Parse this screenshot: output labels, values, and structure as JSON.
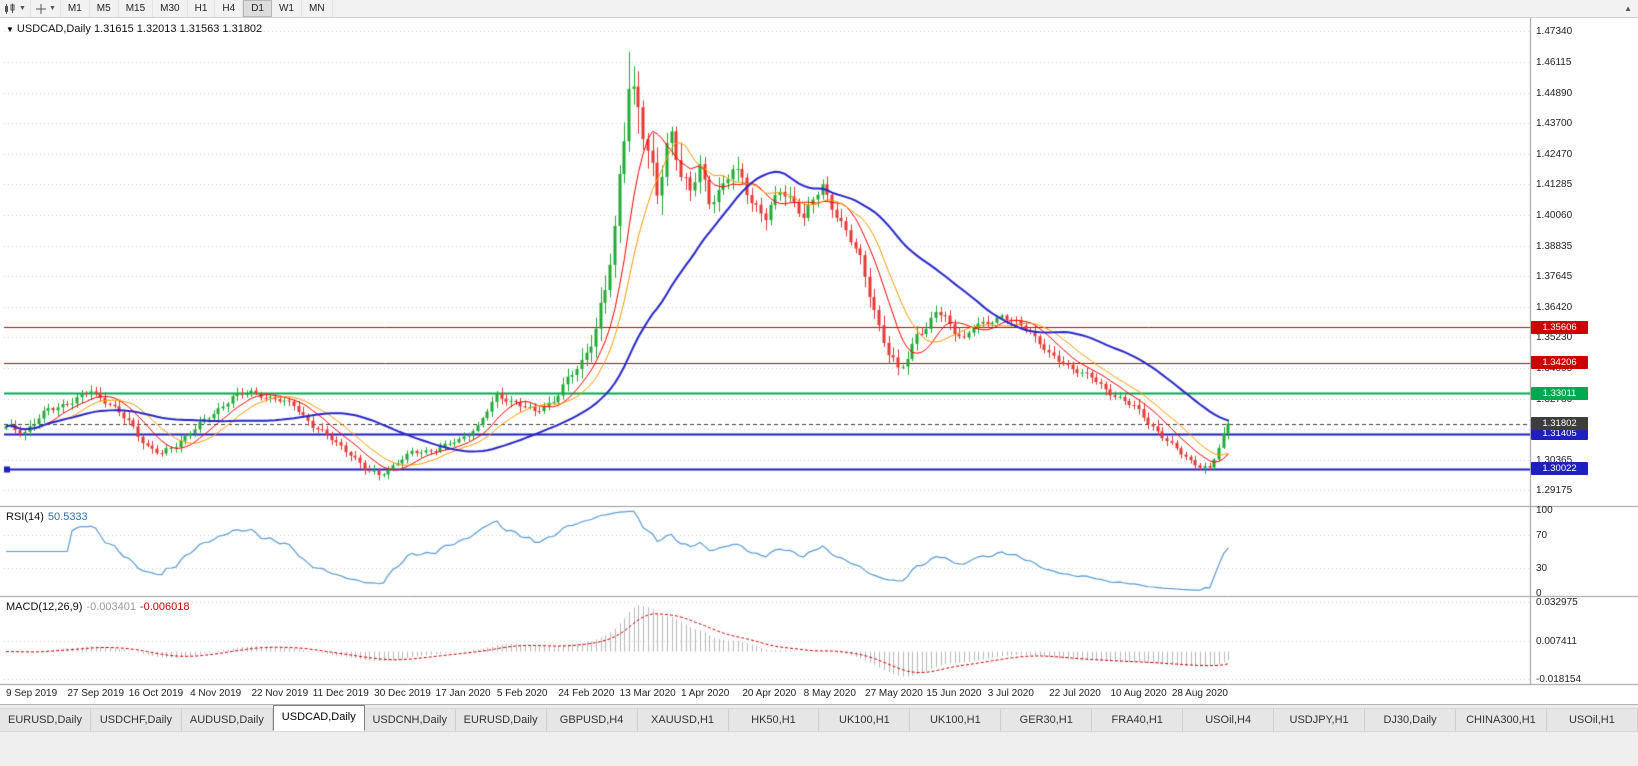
{
  "toolbar": {
    "timeframes": [
      "M1",
      "M5",
      "M15",
      "M30",
      "H1",
      "H4",
      "D1",
      "W1",
      "MN"
    ],
    "active_timeframe": "D1",
    "collapse_glyph": "▲"
  },
  "chart": {
    "symbol_period": "USDCAD,Daily",
    "ohlc": "1.31615 1.32013 1.31563 1.31802",
    "price_ticks": [
      "1.47340",
      "1.46115",
      "1.44890",
      "1.43700",
      "1.42470",
      "1.41285",
      "1.40060",
      "1.38835",
      "1.37645",
      "1.36420",
      "1.35230",
      "1.34005",
      "1.32780",
      "1.31590",
      "1.30365",
      "1.29175"
    ],
    "levels": [
      {
        "label": "1.35606",
        "price": 1.35606,
        "color": "#cc0000",
        "width": 1
      },
      {
        "label": "1.34206",
        "price": 1.34206,
        "color": "#cc0000",
        "width": 1
      },
      {
        "label": "1.33011",
        "price": 1.33011,
        "color": "#00a84f",
        "width": 2
      },
      {
        "label": "1.31405",
        "price": 1.31405,
        "color": "#1f1fbf",
        "width": 2
      },
      {
        "label": "1.30022",
        "price": 1.30022,
        "color": "#1f1fbf",
        "width": 2,
        "handle": true
      }
    ],
    "current_price": {
      "label": "1.31802",
      "price": 1.31802,
      "color": "#3d3d3d"
    }
  },
  "rsi": {
    "name": "RSI(14)",
    "value": "50.5333",
    "ticks": [
      {
        "label": "100",
        "value": 100
      },
      {
        "label": "70",
        "value": 70
      },
      {
        "label": "30",
        "value": 30
      },
      {
        "label": "0",
        "value": 0
      }
    ],
    "grid_levels": [
      70,
      30
    ],
    "line_color": "#5b9bd5"
  },
  "macd": {
    "name": "MACD(12,26,9)",
    "value_main": "-0.003401",
    "value_signal": "-0.006018",
    "ticks": [
      {
        "label": "0.032975",
        "value": 0.032975
      },
      {
        "label": "0.007411",
        "value": 0.007411
      },
      {
        "label": "-0.018154",
        "value": -0.018154
      }
    ],
    "hist_color": "#b8b8b8",
    "signal_color": "#cc0000"
  },
  "tabs": {
    "items": [
      "EURUSD,Daily",
      "USDCHF,Daily",
      "AUDUSD,Daily",
      "USDCAD,Daily",
      "USDCNH,Daily",
      "EURUSD,Daily",
      "GBPUSD,H4",
      "XAUUSD,H1",
      "HK50,H1",
      "UK100,H1",
      "UK100,H1",
      "GER30,H1",
      "FRA40,H1",
      "USOil,H4",
      "USDJPY,H1",
      "DJ30,Daily",
      "CHINA300,H1",
      "USOil,H1"
    ],
    "active_index": 3
  },
  "chart_data": {
    "type": "candlestick",
    "symbol": "USDCAD",
    "timeframe": "Daily",
    "bar_count": 260,
    "ylim": [
      1.28618,
      1.47775
    ],
    "date_labels": [
      "9 Sep 2019",
      "27 Sep 2019",
      "16 Oct 2019",
      "4 Nov 2019",
      "22 Nov 2019",
      "11 Dec 2019",
      "30 Dec 2019",
      "17 Jan 2020",
      "5 Feb 2020",
      "24 Feb 2020",
      "13 Mar 2020",
      "1 Apr 2020",
      "20 Apr 2020",
      "8 May 2020",
      "27 May 2020",
      "15 Jun 2020",
      "3 Jul 2020",
      "22 Jul 2020",
      "10 Aug 2020",
      "28 Aug 2020"
    ],
    "date_label_step": 13,
    "up_color": "#22ab36",
    "down_color": "#e53935",
    "keypoints": [
      [
        0,
        1.317,
        0.0045
      ],
      [
        4,
        1.3148,
        0.0045
      ],
      [
        9,
        1.3235,
        0.0045
      ],
      [
        14,
        1.3268,
        0.004
      ],
      [
        18,
        1.331,
        0.004
      ],
      [
        22,
        1.3258,
        0.004
      ],
      [
        26,
        1.3185,
        0.0048
      ],
      [
        30,
        1.309,
        0.0048
      ],
      [
        33,
        1.3058,
        0.0042
      ],
      [
        36,
        1.3095,
        0.004
      ],
      [
        39,
        1.3148,
        0.004
      ],
      [
        44,
        1.3218,
        0.004
      ],
      [
        48,
        1.3288,
        0.0038
      ],
      [
        52,
        1.3302,
        0.0038
      ],
      [
        57,
        1.3278,
        0.0032
      ],
      [
        61,
        1.3252,
        0.0032
      ],
      [
        65,
        1.3172,
        0.0038
      ],
      [
        69,
        1.3118,
        0.0038
      ],
      [
        73,
        1.3062,
        0.0038
      ],
      [
        76,
        1.2998,
        0.004
      ],
      [
        79,
        1.2978,
        0.0038
      ],
      [
        82,
        1.3012,
        0.0032
      ],
      [
        86,
        1.3066,
        0.003
      ],
      [
        91,
        1.3076,
        0.003
      ],
      [
        96,
        1.3116,
        0.003
      ],
      [
        100,
        1.3168,
        0.0032
      ],
      [
        104,
        1.3292,
        0.004
      ],
      [
        108,
        1.3262,
        0.0038
      ],
      [
        112,
        1.3226,
        0.0038
      ],
      [
        116,
        1.3272,
        0.0042
      ],
      [
        119,
        1.3352,
        0.0055
      ],
      [
        122,
        1.3422,
        0.0075
      ],
      [
        125,
        1.356,
        0.0105
      ],
      [
        127,
        1.3705,
        0.014
      ],
      [
        129,
        1.3925,
        0.0185
      ],
      [
        131,
        1.4355,
        0.024
      ],
      [
        132,
        1.456,
        0.026
      ],
      [
        134,
        1.443,
        0.023
      ],
      [
        136,
        1.4235,
        0.019
      ],
      [
        138,
        1.4085,
        0.016
      ],
      [
        140,
        1.429,
        0.014
      ],
      [
        141,
        1.4335,
        0.0125
      ],
      [
        143,
        1.4165,
        0.0115
      ],
      [
        145,
        1.4085,
        0.0105
      ],
      [
        147,
        1.4205,
        0.0095
      ],
      [
        149,
        1.4065,
        0.0092
      ],
      [
        152,
        1.4115,
        0.0085
      ],
      [
        154,
        1.4185,
        0.0082
      ],
      [
        156,
        1.4152,
        0.008
      ],
      [
        158,
        1.4062,
        0.0075
      ],
      [
        161,
        1.3992,
        0.0072
      ],
      [
        164,
        1.4105,
        0.007
      ],
      [
        167,
        1.4062,
        0.0065
      ],
      [
        169,
        1.3992,
        0.0068
      ],
      [
        171,
        1.4062,
        0.0062
      ],
      [
        173,
        1.4122,
        0.006
      ],
      [
        175,
        1.4042,
        0.006
      ],
      [
        177,
        1.3972,
        0.006
      ],
      [
        179,
        1.3902,
        0.0062
      ],
      [
        181,
        1.3832,
        0.0065
      ],
      [
        183,
        1.3702,
        0.0072
      ],
      [
        185,
        1.3562,
        0.0075
      ],
      [
        187,
        1.3452,
        0.0075
      ],
      [
        189,
        1.3392,
        0.0065
      ],
      [
        191,
        1.3442,
        0.006
      ],
      [
        193,
        1.3542,
        0.0052
      ],
      [
        195,
        1.3548,
        0.005
      ],
      [
        197,
        1.3622,
        0.005
      ],
      [
        199,
        1.3602,
        0.0048
      ],
      [
        201,
        1.3548,
        0.0048
      ],
      [
        203,
        1.3512,
        0.0046
      ],
      [
        205,
        1.3562,
        0.0044
      ],
      [
        208,
        1.3582,
        0.0042
      ],
      [
        211,
        1.3606,
        0.0042
      ],
      [
        214,
        1.3576,
        0.004
      ],
      [
        217,
        1.3546,
        0.004
      ],
      [
        219,
        1.3502,
        0.004
      ],
      [
        221,
        1.3452,
        0.0042
      ],
      [
        224,
        1.3416,
        0.004
      ],
      [
        227,
        1.3392,
        0.004
      ],
      [
        230,
        1.3362,
        0.004
      ],
      [
        233,
        1.3312,
        0.004
      ],
      [
        236,
        1.3282,
        0.004
      ],
      [
        239,
        1.3246,
        0.004
      ],
      [
        242,
        1.3186,
        0.0042
      ],
      [
        245,
        1.3132,
        0.0042
      ],
      [
        247,
        1.3092,
        0.0042
      ],
      [
        251,
        1.3032,
        0.0042
      ],
      [
        255,
        1.2999,
        0.004
      ],
      [
        257,
        1.3082,
        0.0044
      ],
      [
        259,
        1.31802,
        0.004
      ]
    ],
    "ma": [
      {
        "period": 8,
        "color": "#ff0000",
        "width": 1
      },
      {
        "period": 13,
        "color": "#ff9900",
        "width": 1
      },
      {
        "period": 34,
        "color": "#2828c8",
        "width": 2
      }
    ],
    "indicators": {
      "rsi_period": 14,
      "macd": {
        "fast": 12,
        "slow": 26,
        "signal": 9
      },
      "macd_range": [
        -0.0196,
        0.0345
      ]
    }
  }
}
